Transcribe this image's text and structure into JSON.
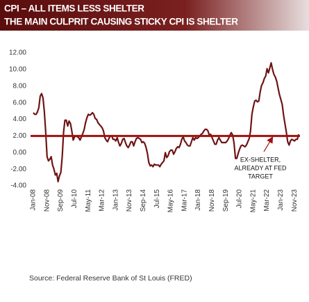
{
  "chart_data": {
    "type": "line",
    "title": [
      "CPI – ALL ITEMS LESS SHELTER",
      "THE MAIN CULPRIT CAUSING STICKY CPI IS SHELTER"
    ],
    "source": "Source:  Federal Reserve Bank of St Louis  (FRED)",
    "annotation": [
      "EX-SHELTER,",
      "ALREADY AT FED",
      "TARGET"
    ],
    "target": 2,
    "target_color": "#a01010",
    "color": "#6e1414",
    "categories": [
      "Jan-08",
      null,
      null,
      null,
      null,
      null,
      null,
      null,
      null,
      null,
      "Nov-08",
      null,
      null,
      null,
      null,
      null,
      null,
      null,
      null,
      null,
      "Sep-09",
      null,
      null,
      null,
      null,
      null,
      null,
      null,
      null,
      null,
      "Jul-10",
      null,
      null,
      null,
      null,
      null,
      null,
      null,
      null,
      null,
      "May-11",
      null,
      null,
      null,
      null,
      null,
      null,
      null,
      null,
      null,
      "Mar-12",
      null,
      null,
      null,
      null,
      null,
      null,
      null,
      null,
      null,
      "Jan-13",
      null,
      null,
      null,
      null,
      null,
      null,
      null,
      null,
      null,
      "Nov-13",
      null,
      null,
      null,
      null,
      null,
      null,
      null,
      null,
      null,
      "Sep-14",
      null,
      null,
      null,
      null,
      null,
      null,
      null,
      null,
      null,
      "Jul-15",
      null,
      null,
      null,
      null,
      null,
      null,
      null,
      null,
      null,
      "May-16",
      null,
      null,
      null,
      null,
      null,
      null,
      null,
      null,
      null,
      "Mar-17",
      null,
      null,
      null,
      null,
      null,
      null,
      null,
      null,
      null,
      "Jan-18",
      null,
      null,
      null,
      null,
      null,
      null,
      null,
      null,
      null,
      "Nov-18",
      null,
      null,
      null,
      null,
      null,
      null,
      null,
      null,
      null,
      "Sep-19",
      null,
      null,
      null,
      null,
      null,
      null,
      null,
      null,
      null,
      "Jul-20",
      null,
      null,
      null,
      null,
      null,
      null,
      null,
      null,
      null,
      "May-21",
      null,
      null,
      null,
      null,
      null,
      null,
      null,
      null,
      null,
      "Mar-22",
      null,
      null,
      null,
      null,
      null,
      null,
      null,
      null,
      null,
      "Jan-23",
      null,
      null,
      null,
      null,
      null,
      null,
      null,
      null,
      null,
      "Nov-23",
      null,
      null,
      null
    ],
    "values": [
      4.8,
      4.6,
      4.6,
      4.9,
      5.4,
      6.8,
      7.1,
      6.6,
      5.0,
      2.5,
      -0.5,
      -1.0,
      -0.8,
      -0.5,
      -1.5,
      -2.0,
      -2.7,
      -2.5,
      -3.5,
      -2.8,
      -2.4,
      -0.5,
      2.5,
      3.9,
      3.9,
      3.2,
      3.8,
      3.5,
      2.6,
      1.5,
      1.9,
      2.0,
      1.9,
      1.8,
      1.5,
      1.9,
      2.3,
      2.8,
      3.6,
      4.2,
      4.6,
      4.5,
      4.6,
      4.8,
      4.6,
      4.1,
      4.0,
      3.6,
      3.4,
      3.2,
      3.0,
      2.6,
      1.8,
      1.5,
      1.3,
      1.7,
      2.0,
      2.0,
      1.6,
      1.6,
      1.4,
      1.8,
      1.2,
      0.8,
      1.1,
      1.6,
      1.7,
      1.2,
      0.8,
      0.6,
      0.9,
      1.3,
      1.3,
      0.8,
      1.3,
      1.7,
      1.8,
      1.7,
      1.6,
      1.2,
      1.3,
      1.1,
      0.6,
      -0.1,
      -1.2,
      -1.6,
      -1.5,
      -1.7,
      -1.4,
      -1.5,
      -1.5,
      -1.5,
      -1.7,
      -1.4,
      -1.2,
      -1.0,
      0.0,
      -0.6,
      -0.4,
      0.1,
      0.3,
      0.3,
      -0.2,
      0.1,
      0.5,
      0.7,
      0.6,
      1.0,
      1.6,
      1.9,
      1.4,
      1.2,
      0.9,
      0.8,
      0.8,
      1.3,
      1.8,
      1.5,
      1.8,
      1.7,
      1.8,
      2.0,
      2.2,
      2.3,
      2.6,
      2.8,
      2.8,
      2.6,
      2.1,
      2.2,
      1.8,
      1.4,
      1.0,
      1.0,
      1.5,
      1.8,
      1.5,
      1.2,
      1.2,
      1.2,
      1.2,
      1.4,
      1.7,
      2.1,
      2.4,
      2.1,
      1.1,
      -0.7,
      -0.7,
      -0.1,
      0.4,
      0.8,
      0.9,
      0.8,
      0.7,
      0.9,
      1.3,
      1.7,
      2.6,
      4.6,
      5.5,
      6.2,
      6.3,
      6.1,
      6.2,
      7.3,
      8.1,
      8.4,
      8.9,
      9.2,
      10.1,
      9.6,
      10.2,
      10.8,
      10.0,
      9.4,
      9.1,
      8.6,
      7.8,
      7.0,
      6.4,
      5.8,
      4.5,
      3.5,
      2.5,
      1.3,
      0.9,
      1.4,
      1.6,
      1.5,
      1.4,
      1.6,
      1.6,
      2.2
    ],
    "ylim": [
      -4,
      12
    ],
    "yticks": [
      {
        "value": -4,
        "label": "-4.00"
      },
      {
        "value": -2,
        "label": "-2.00"
      },
      {
        "value": 0,
        "label": "0.00"
      },
      {
        "value": 2,
        "label": "2.00"
      },
      {
        "value": 4,
        "label": "4.00"
      },
      {
        "value": 6,
        "label": "6.00"
      },
      {
        "value": 8,
        "label": "8.00"
      },
      {
        "value": 10,
        "label": "10.00"
      },
      {
        "value": 12,
        "label": "12.00"
      }
    ],
    "grid": false
  }
}
